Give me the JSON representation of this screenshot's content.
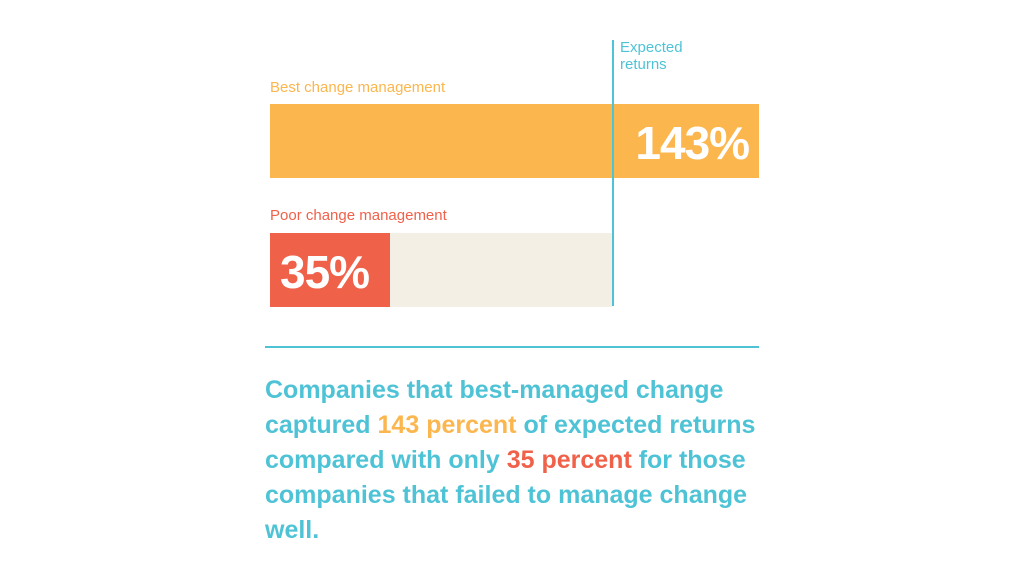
{
  "colors": {
    "best": "#fbb64e",
    "poor": "#f0614a",
    "accent": "#4fc3d6",
    "track": "#f4efe4",
    "value_text": "#ffffff"
  },
  "chart_data": {
    "type": "bar",
    "orientation": "horizontal",
    "categories": [
      "Best change management",
      "Poor change management"
    ],
    "values": [
      143,
      35
    ],
    "value_labels": [
      "143%",
      "35%"
    ],
    "reference_line": {
      "label": "Expected returns",
      "value": 100
    },
    "title": "",
    "xlabel": "",
    "ylabel": "",
    "grid": false,
    "legend": "none"
  },
  "caption": {
    "part1": "Companies that best-managed change captured ",
    "highlight1": "143 percent",
    "part2": " of expected returns compared with only ",
    "highlight2": "35 percent",
    "part3": " for those companies that failed to manage change well."
  }
}
